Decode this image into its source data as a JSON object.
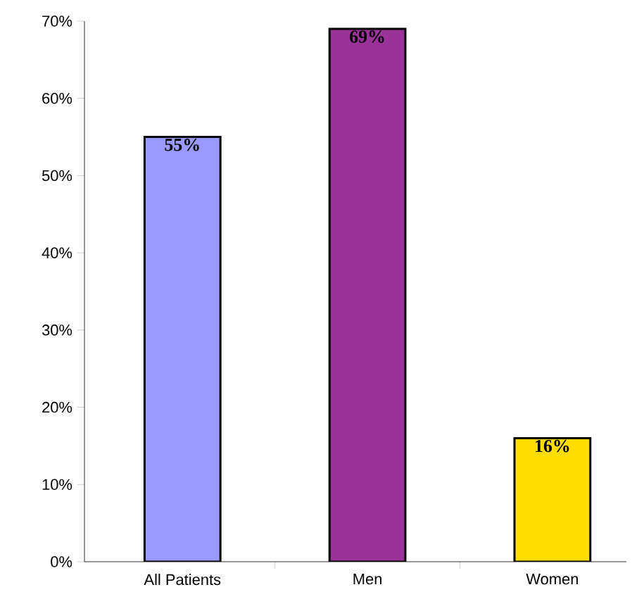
{
  "chart_data": {
    "type": "bar",
    "categories": [
      "All Patients",
      "Men",
      "Women"
    ],
    "values": [
      55,
      69,
      16
    ],
    "colors": [
      "#9999ff",
      "#993399",
      "#ffdd00"
    ],
    "value_labels": [
      "55%",
      "69%",
      "16%"
    ],
    "ylim": [
      0,
      70
    ],
    "yticks": [
      {
        "value": 0,
        "label": "0%"
      },
      {
        "value": 10,
        "label": "10%"
      },
      {
        "value": 20,
        "label": "20%"
      },
      {
        "value": 30,
        "label": "30%"
      },
      {
        "value": 40,
        "label": "40%"
      },
      {
        "value": 50,
        "label": "50%"
      },
      {
        "value": 60,
        "label": "60%"
      },
      {
        "value": 70,
        "label": "70%"
      }
    ]
  }
}
